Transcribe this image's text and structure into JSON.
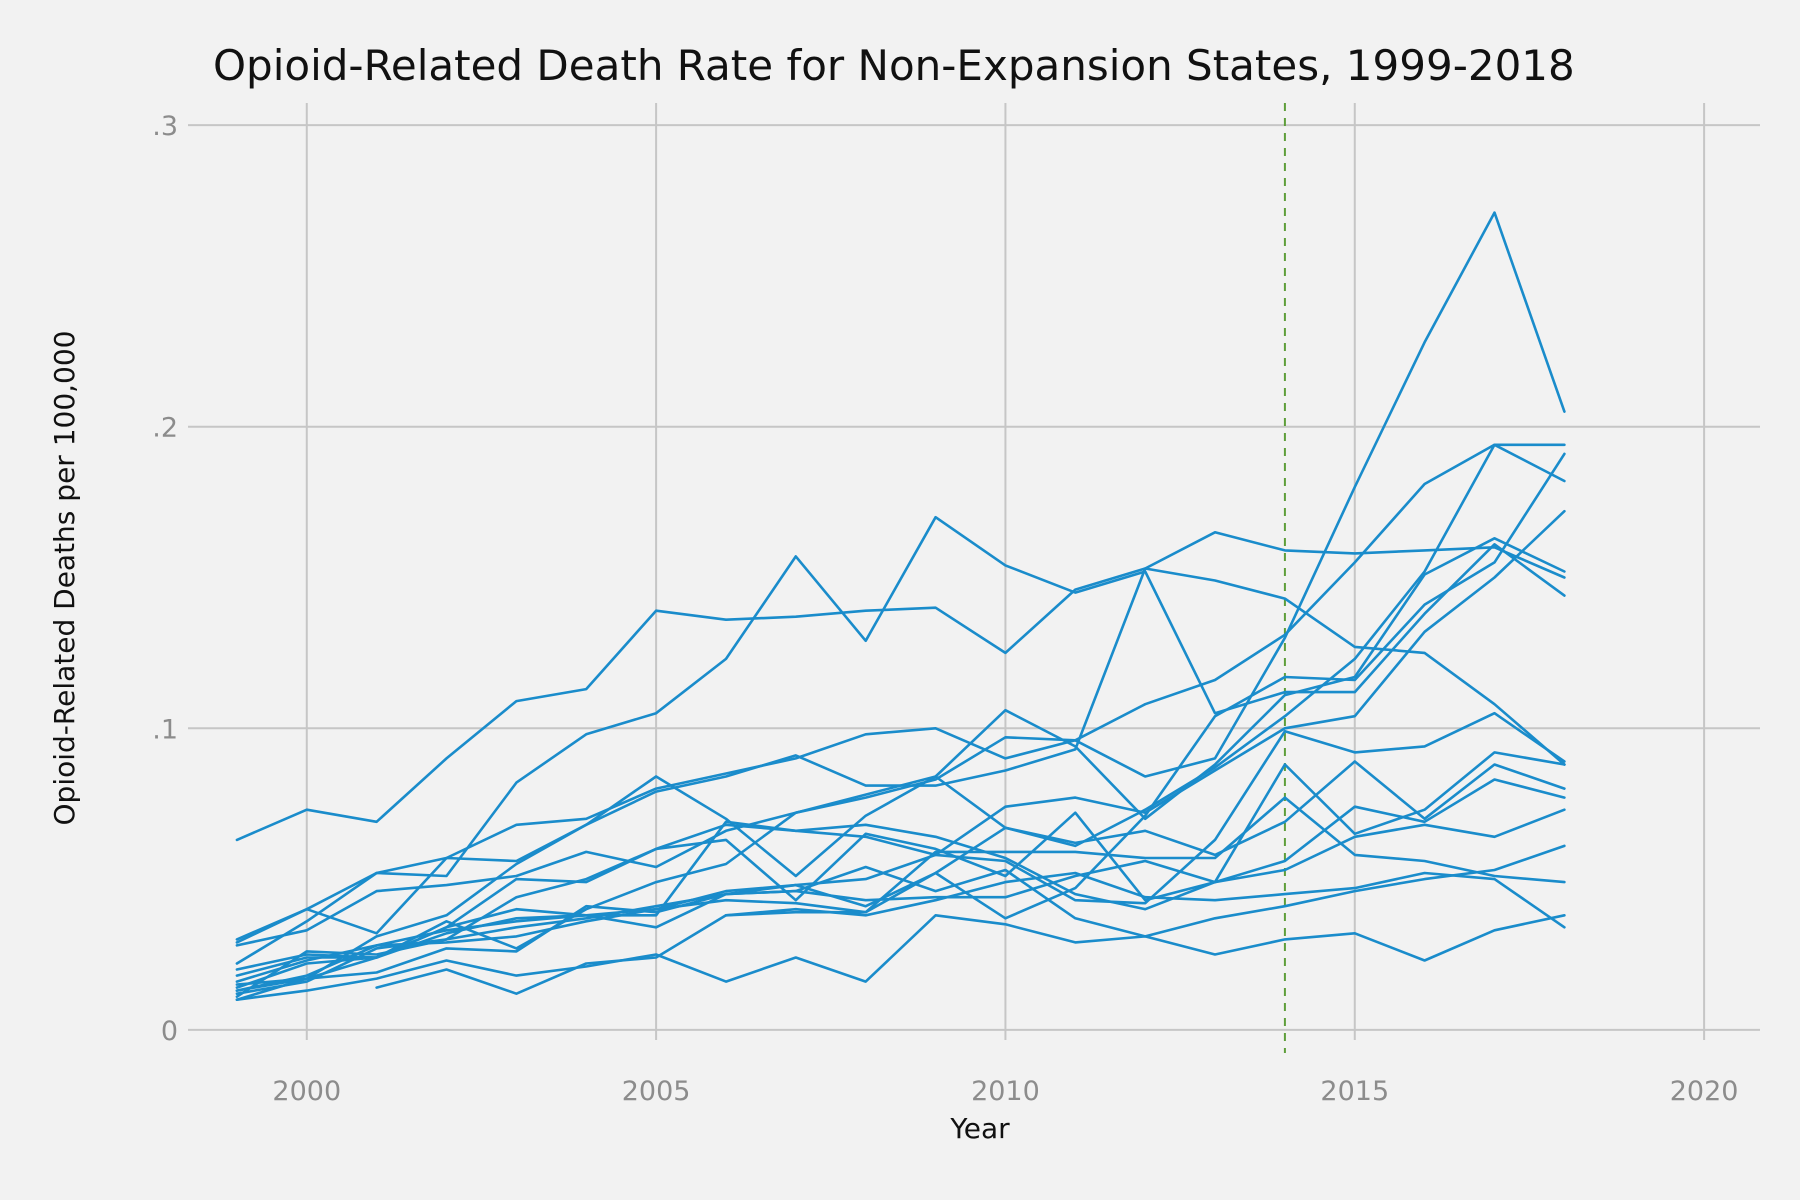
{
  "chart_data": {
    "type": "line",
    "title": "Opioid-Related Death Rate for Non-Expansion States, 1999-2018",
    "xlabel": "Year",
    "ylabel": "Opioid-Related Deaths per 100,000",
    "xlim": [
      1998.3,
      2020.8
    ],
    "ylim": [
      -0.01,
      0.31
    ],
    "x_ticks": [
      2000,
      2005,
      2010,
      2015,
      2020
    ],
    "y_ticks": [
      0,
      0.1,
      0.2,
      0.3
    ],
    "x_tick_labels": [
      "2000",
      "2005",
      "2010",
      "2015",
      "2020"
    ],
    "y_tick_labels": [
      "0",
      ".1",
      ".2",
      ".3"
    ],
    "grid": true,
    "legend": "none",
    "reference_line": {
      "x": 2014,
      "style": "dashed",
      "color": "#5e9e3a"
    },
    "line_color": "#1a8ccb",
    "x": [
      1999,
      2000,
      2001,
      2002,
      2003,
      2004,
      2005,
      2006,
      2007,
      2008,
      2009,
      2010,
      2011,
      2012,
      2013,
      2014,
      2015,
      2016,
      2017,
      2018
    ],
    "series": [
      {
        "values": [
          0.02,
          0.025,
          0.024,
          0.034,
          0.04,
          0.038,
          0.034,
          0.045,
          0.046,
          0.054,
          0.046,
          0.053,
          0.037,
          0.031,
          0.025,
          0.03,
          0.032,
          0.023,
          0.033,
          0.038
        ]
      },
      {
        "values": [
          0.063,
          0.073,
          0.069,
          0.09,
          0.109,
          0.113,
          0.139,
          0.136,
          0.137,
          0.139,
          0.14,
          0.125,
          0.146,
          0.153,
          0.149,
          0.143,
          0.127,
          0.125,
          0.108,
          0.088
        ]
      },
      {
        "values": [
          0.029,
          0.04,
          0.052,
          0.057,
          0.068,
          0.07,
          0.08,
          0.085,
          0.09,
          0.098,
          0.1,
          0.09,
          0.096,
          0.084,
          0.09,
          0.13,
          0.18,
          0.228,
          0.271,
          0.205
        ]
      },
      {
        "values": [
          0.028,
          0.033,
          0.046,
          0.048,
          0.051,
          0.059,
          0.054,
          0.066,
          0.072,
          0.077,
          0.083,
          0.097,
          0.096,
          0.108,
          0.116,
          0.131,
          0.155,
          0.181,
          0.194,
          0.194
        ]
      },
      {
        "values": [
          0.013,
          0.017,
          0.031,
          0.038,
          0.055,
          0.068,
          0.079,
          0.084,
          0.091,
          0.081,
          0.081,
          0.086,
          0.093,
          0.153,
          0.165,
          0.159,
          0.158,
          0.159,
          0.16,
          0.15
        ]
      },
      {
        "values": [
          0.011,
          0.026,
          0.025,
          0.03,
          0.034,
          0.037,
          0.041,
          0.045,
          0.048,
          0.041,
          0.052,
          0.067,
          0.061,
          0.073,
          0.087,
          0.104,
          0.123,
          0.152,
          0.194,
          0.182
        ]
      },
      {
        "values": [
          0.03,
          0.04,
          0.032,
          0.057,
          0.056,
          0.068,
          0.084,
          0.07,
          0.051,
          0.071,
          0.084,
          0.106,
          0.094,
          0.07,
          0.088,
          0.111,
          0.117,
          0.151,
          0.163,
          0.152
        ]
      },
      {
        "values": [
          0.022,
          0.036,
          0.052,
          0.051,
          0.082,
          0.098,
          0.105,
          0.123,
          0.157,
          0.129,
          0.17,
          0.154,
          0.145,
          0.152,
          0.105,
          0.112,
          0.112,
          0.138,
          0.161,
          0.144
        ]
      },
      {
        "values": [
          0.016,
          0.023,
          0.028,
          0.029,
          0.031,
          0.036,
          0.04,
          0.043,
          0.042,
          0.039,
          0.052,
          0.037,
          0.047,
          0.071,
          0.104,
          0.117,
          0.116,
          0.141,
          0.155,
          0.191
        ]
      },
      {
        "values": [
          0.018,
          0.024,
          0.024,
          0.032,
          0.037,
          0.038,
          0.04,
          0.046,
          0.048,
          0.05,
          0.058,
          0.074,
          0.077,
          0.072,
          0.086,
          0.1,
          0.104,
          0.132,
          0.15,
          0.172
        ]
      },
      {
        "values": [
          0.01,
          0.017,
          0.024,
          0.034,
          0.05,
          0.049,
          0.06,
          0.068,
          0.066,
          0.064,
          0.058,
          0.056,
          0.043,
          0.042,
          0.063,
          0.099,
          0.092,
          0.094,
          0.105,
          0.089
        ]
      },
      {
        "values": [
          0.014,
          0.022,
          0.024,
          0.036,
          0.027,
          0.04,
          0.049,
          0.055,
          0.072,
          0.078,
          0.084,
          0.067,
          0.062,
          0.066,
          0.058,
          0.069,
          0.089,
          0.07,
          0.088,
          0.08
        ]
      },
      {
        "values": [
          0.012,
          0.016,
          0.027,
          0.03,
          0.044,
          0.05,
          0.06,
          0.063,
          0.043,
          0.065,
          0.06,
          0.051,
          0.072,
          0.043,
          0.049,
          0.088,
          0.065,
          0.073,
          0.092,
          0.088
        ]
      },
      {
        "values": [
          0.013,
          0.018,
          0.028,
          0.033,
          0.036,
          0.038,
          0.038,
          0.069,
          0.066,
          0.068,
          0.064,
          0.057,
          0.045,
          0.04,
          0.049,
          0.056,
          0.074,
          0.069,
          0.083,
          0.077
        ]
      },
      {
        "values": [
          0.015,
          0.017,
          0.019,
          0.027,
          0.026,
          0.041,
          0.039,
          0.045,
          0.046,
          0.043,
          0.044,
          0.044,
          0.051,
          0.056,
          0.049,
          0.053,
          0.064,
          0.068,
          0.064,
          0.073
        ]
      },
      {
        "values": [
          null,
          null,
          null,
          null,
          null,
          null,
          null,
          0.038,
          0.039,
          0.039,
          0.059,
          0.059,
          0.059,
          0.057,
          0.057,
          0.077,
          0.058,
          0.056,
          0.051,
          0.049
        ]
      },
      {
        "values": [
          0.01,
          0.013,
          0.017,
          0.023,
          0.018,
          0.021,
          0.025,
          0.016,
          0.024,
          0.016,
          0.038,
          0.035,
          0.029,
          0.031,
          0.037,
          0.041,
          0.046,
          0.05,
          0.053,
          0.061
        ]
      },
      {
        "values": [
          null,
          null,
          0.014,
          0.02,
          0.012,
          0.022,
          0.024,
          0.038,
          0.04,
          0.038,
          0.043,
          0.049,
          0.052,
          0.044,
          0.043,
          0.045,
          0.047,
          0.052,
          0.05,
          0.034
        ]
      }
    ]
  }
}
